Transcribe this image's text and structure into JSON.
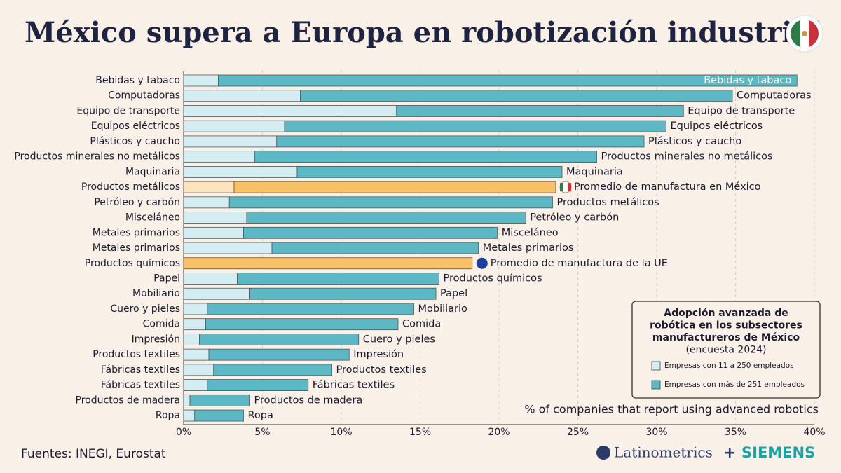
{
  "chart_data": {
    "type": "bar",
    "orientation": "horizontal",
    "stacked": true,
    "title": "México supera a Europa en robotización industrial",
    "categories": [
      "Bebidas y tabaco",
      "Computadoras",
      "Equipo de transporte",
      "Equipos eléctricos",
      "Plásticos y caucho",
      "Productos minerales no metálicos",
      "Maquinaria",
      "Productos metálicos",
      "Petróleo y carbón",
      "Misceláneo",
      "Metales primarios",
      "Metales primarios",
      "Productos químicos",
      "Papel",
      "Mobiliario",
      "Cuero y pieles",
      "Comida",
      "Impresión",
      "Productos textiles",
      "Fábricas textiles",
      "Fábricas textiles",
      "Productos de madera",
      "Ropa"
    ],
    "bar_labels": [
      "Bebidas y tabaco",
      "Computadoras",
      "Equipo de transporte",
      "Equipos eléctricos",
      "Plásticos y caucho",
      "Productos minerales no metálicos",
      "Maquinaria",
      "Promedio de manufactura en México",
      "Productos metálicos",
      "Petróleo y carbón",
      "Misceláneo",
      "Metales primarios",
      "Promedio de manufactura de la UE",
      "Productos químicos",
      "Papel",
      "Mobiliario",
      "Comida",
      "Cuero y pieles",
      "Impresión",
      "Productos textiles",
      "Fábricas textiles",
      "Productos de madera",
      "Ropa"
    ],
    "series": [
      {
        "name": "Empresas con 11 a 250 empleados",
        "color": "#d3edf2",
        "highlight_color": "#fde3bd",
        "values": [
          2.2,
          7.4,
          13.5,
          6.4,
          5.9,
          4.5,
          7.2,
          3.2,
          2.9,
          4.0,
          3.8,
          5.6,
          null,
          3.4,
          4.2,
          1.5,
          1.4,
          1.0,
          1.6,
          1.9,
          1.5,
          0.4,
          0.7
        ]
      },
      {
        "name": "Empresas con más de 251 empleados",
        "color": "#5cb8c4",
        "highlight_color": "#f9c167",
        "values": [
          36.7,
          27.4,
          18.2,
          24.2,
          23.3,
          21.7,
          16.8,
          20.4,
          20.5,
          17.7,
          16.1,
          13.1,
          18.3,
          12.8,
          11.8,
          13.1,
          12.2,
          10.1,
          8.9,
          7.5,
          6.4,
          3.8,
          3.1
        ]
      }
    ],
    "highlight_rows": [
      7,
      12
    ],
    "xlim": [
      0,
      40
    ],
    "xticks": [
      {
        "value": 0,
        "label": "0%"
      },
      {
        "value": 5,
        "label": "5%"
      },
      {
        "value": 10,
        "label": "10%"
      },
      {
        "value": 15,
        "label": "15%"
      },
      {
        "value": 20,
        "label": "20%"
      },
      {
        "value": 25,
        "label": "25%"
      },
      {
        "value": 30,
        "label": "30%"
      },
      {
        "value": 35,
        "label": "35%"
      },
      {
        "value": 40,
        "label": "40%"
      }
    ],
    "grid": true,
    "x_label": "% of companies that report using advanced robotics",
    "legend_title": [
      "Adopción avanzada de",
      "robótica en los subsectores",
      "manufactureros de México",
      "(encuesta 2024)"
    ],
    "legend_position": "lower right",
    "source": "Fuentes: INEGI, Eurostat",
    "brand": [
      "Latinometrics",
      "+",
      "SIEMENS"
    ]
  }
}
